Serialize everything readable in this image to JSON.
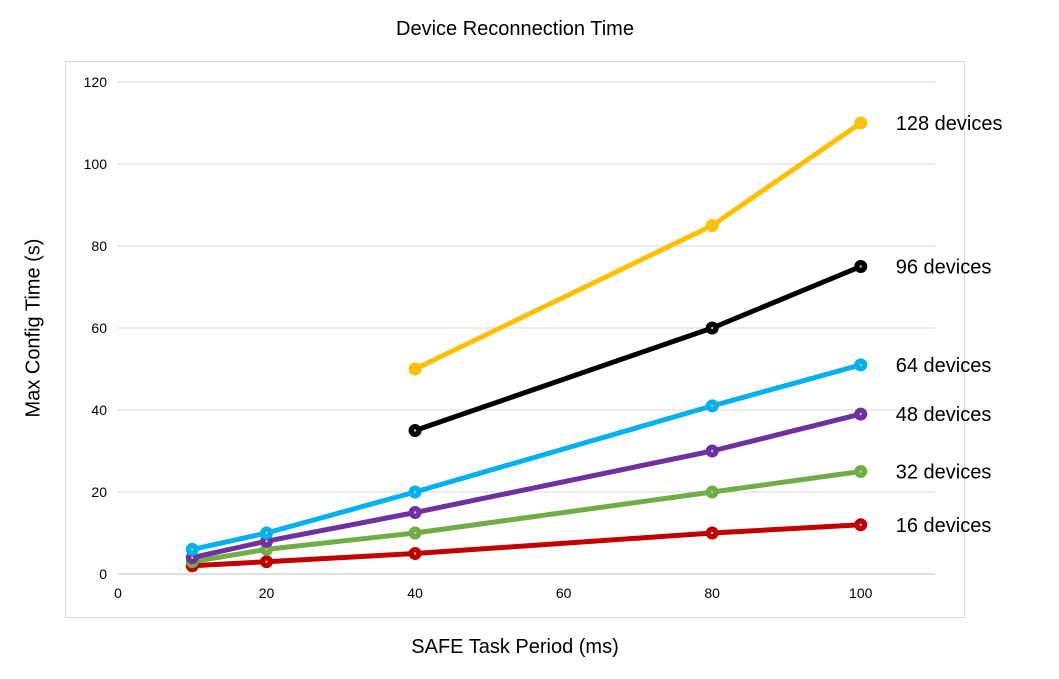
{
  "chart_data": {
    "type": "line",
    "title": "Device Reconnection Time",
    "xlabel": "SAFE Task Period (ms)",
    "ylabel": "Max Config Time (s)",
    "xlim": [
      0,
      110
    ],
    "ylim": [
      0,
      120
    ],
    "x_ticks": [
      0,
      20,
      40,
      60,
      80,
      100
    ],
    "y_ticks": [
      0,
      20,
      40,
      60,
      80,
      100,
      120
    ],
    "grid": "horizontal",
    "legend": "direct labels at right end of each line",
    "series": [
      {
        "name": "16 devices",
        "color": "#c00000",
        "x": [
          10,
          20,
          40,
          80,
          100
        ],
        "y": [
          2,
          3,
          5,
          10,
          12
        ]
      },
      {
        "name": "32 devices",
        "color": "#70ad47",
        "x": [
          10,
          20,
          40,
          80,
          100
        ],
        "y": [
          3,
          6,
          10,
          20,
          25
        ]
      },
      {
        "name": "48 devices",
        "color": "#7030a0",
        "x": [
          10,
          20,
          40,
          80,
          100
        ],
        "y": [
          4,
          8,
          15,
          30,
          39
        ]
      },
      {
        "name": "64 devices",
        "color": "#00b0f0",
        "x": [
          10,
          20,
          40,
          80,
          100
        ],
        "y": [
          6,
          10,
          20,
          41,
          51
        ]
      },
      {
        "name": "96 devices",
        "color": "#000000",
        "x": [
          40,
          80,
          100
        ],
        "y": [
          35,
          60,
          75
        ]
      },
      {
        "name": "128 devices",
        "color": "#ffc000",
        "x": [
          40,
          80,
          100
        ],
        "y": [
          50,
          85,
          110
        ]
      }
    ]
  }
}
